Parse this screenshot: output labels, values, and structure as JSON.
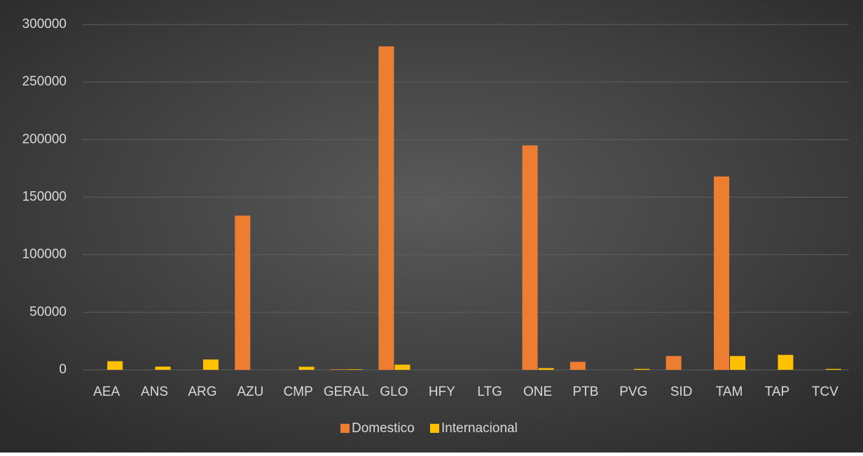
{
  "chart_data": {
    "type": "bar",
    "categories": [
      "AEA",
      "ANS",
      "ARG",
      "AZU",
      "CMP",
      "GERAL",
      "GLO",
      "HFY",
      "LTG",
      "ONE",
      "PTB",
      "PVG",
      "SID",
      "TAM",
      "TAP",
      "TCV"
    ],
    "series": [
      {
        "name": "Domestico",
        "color": "#ed7d31",
        "values": [
          0,
          0,
          0,
          134000,
          0,
          500,
          281000,
          0,
          0,
          195000,
          7000,
          0,
          12000,
          168000,
          0,
          0
        ]
      },
      {
        "name": "Internacional",
        "color": "#ffc000",
        "values": [
          7500,
          2800,
          9000,
          0,
          2700,
          500,
          4500,
          0,
          0,
          1500,
          0,
          800,
          0,
          12000,
          13000,
          800
        ]
      }
    ],
    "ylim": [
      0,
      300000
    ],
    "yticks": [
      0,
      50000,
      100000,
      150000,
      200000,
      250000,
      300000
    ],
    "grid": true,
    "legend": "bottom"
  }
}
